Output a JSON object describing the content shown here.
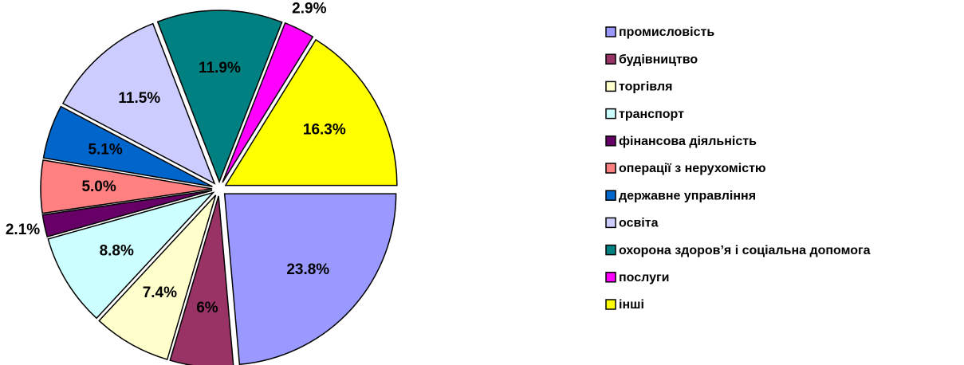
{
  "chart_data": {
    "type": "pie",
    "categories": [
      "промисловість",
      "будівництво",
      "торгівля",
      "транспорт",
      "фінансова діяльність",
      "операції з нерухомістю",
      "державне управління",
      "освіта",
      "охорона здоров’я і соціальна допомога",
      "послуги",
      "інші"
    ],
    "values": [
      23.8,
      6,
      7.4,
      8.8,
      2.1,
      5.0,
      5.1,
      11.5,
      11.9,
      2.9,
      16.3
    ],
    "value_labels": [
      "23.8%",
      "6%",
      "7.4%",
      "8.8%",
      "2.1%",
      "5.0%",
      "5.1%",
      "11.5%",
      "11.9%",
      "2.9%",
      "16.3%"
    ],
    "colors": [
      "#9999FF",
      "#993366",
      "#FFFFCC",
      "#CCFFFF",
      "#660066",
      "#FF8080",
      "#0066CC",
      "#CCCCFF",
      "#008080",
      "#FF00FF",
      "#FFFF00"
    ],
    "legend": "right"
  }
}
